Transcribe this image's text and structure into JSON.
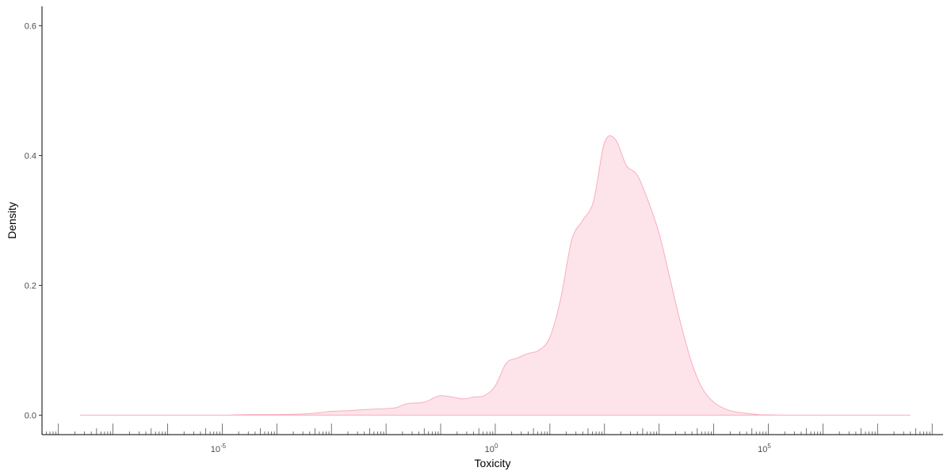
{
  "chart_data": {
    "type": "area",
    "title": "",
    "xlabel": "Toxicity",
    "ylabel": "Density",
    "x_scale": "log10",
    "x_ticks": [
      {
        "value": 1e-05,
        "base": "10",
        "exponent": "-5"
      },
      {
        "value": 1,
        "base": "10",
        "exponent": "0"
      },
      {
        "value": 100000.0,
        "base": "10",
        "exponent": "5"
      }
    ],
    "y_ticks": [
      {
        "value": 0.0,
        "label": "0.0"
      },
      {
        "value": 0.2,
        "label": "0.2"
      },
      {
        "value": 0.4,
        "label": "0.4"
      },
      {
        "value": 0.6,
        "label": "0.6"
      }
    ],
    "xlim_log10": [
      -8.3,
      8.2
    ],
    "ylim": [
      -0.03,
      0.63
    ],
    "grid": false,
    "legend": "none",
    "rug": true,
    "fill_color": "#fde4ea",
    "line_color": "#f8aebf",
    "series": [
      {
        "x_log10": [
          -7.6,
          -6.0,
          -5.0,
          -4.5,
          -4.0,
          -3.5,
          -3.2,
          -3.0,
          -2.7,
          -2.3,
          -2.0,
          -1.8,
          -1.6,
          -1.3,
          -1.0,
          -0.6,
          -0.4,
          -0.2,
          0.0,
          0.2,
          0.4,
          0.6,
          0.8,
          1.0,
          1.2,
          1.4,
          1.6,
          1.8,
          2.0,
          2.2,
          2.4,
          2.6,
          2.8,
          3.0,
          3.2,
          3.4,
          3.6,
          3.8,
          4.0,
          4.2,
          4.4,
          4.6,
          4.8,
          5.0,
          5.2,
          5.6,
          6.0,
          7.0,
          7.6
        ],
        "density": [
          0.0,
          0.0,
          0.0,
          0.001,
          0.001,
          0.002,
          0.004,
          0.006,
          0.007,
          0.009,
          0.01,
          0.012,
          0.018,
          0.02,
          0.03,
          0.025,
          0.028,
          0.03,
          0.045,
          0.08,
          0.088,
          0.095,
          0.1,
          0.12,
          0.18,
          0.27,
          0.3,
          0.33,
          0.42,
          0.425,
          0.385,
          0.37,
          0.33,
          0.28,
          0.21,
          0.14,
          0.08,
          0.04,
          0.02,
          0.01,
          0.005,
          0.003,
          0.001,
          0.0005,
          0.0002,
          0.0,
          0.0,
          0.0,
          0.0
        ]
      }
    ]
  }
}
